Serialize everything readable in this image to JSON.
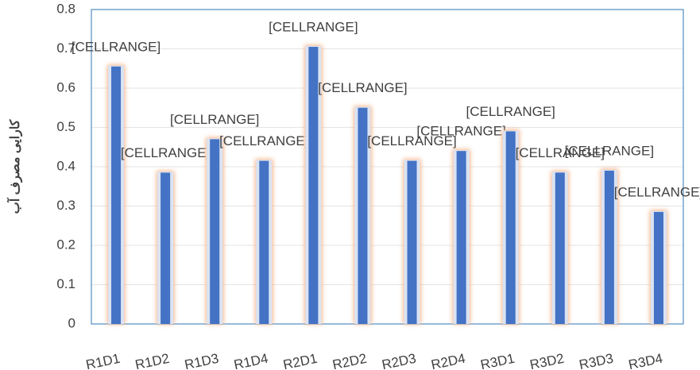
{
  "chart_data": {
    "type": "bar",
    "y_axis_label": "کارایی مصرف آب",
    "categories": [
      "R1D1",
      "R1D2",
      "R1D3",
      "R1D4",
      "R2D1",
      "R2D2",
      "R2D3",
      "R2D4",
      "R3D1",
      "R3D2",
      "R3D3",
      "R3D4"
    ],
    "values": [
      0.655,
      0.385,
      0.47,
      0.415,
      0.705,
      0.55,
      0.415,
      0.44,
      0.49,
      0.385,
      0.39,
      0.285
    ],
    "annotations": [
      "[CELLRANGE]",
      "[CELLRANGE]",
      "[CELLRANGE]",
      "[CELLRANGE]",
      "[CELLRANGE]",
      "[CELLRANGE]",
      "[CELLRANGE]",
      "[CELLRANGE]",
      "[CELLRANGE]",
      "[CELLRANGE]",
      "[CELLRANGE]",
      "[CELLRANGE]"
    ],
    "color": "#4472c4",
    "ylim": [
      0,
      0.8
    ],
    "yticks": [
      0,
      0.1,
      0.2,
      0.3,
      0.4,
      0.5,
      0.6,
      0.7,
      0.8
    ],
    "grid": true
  }
}
